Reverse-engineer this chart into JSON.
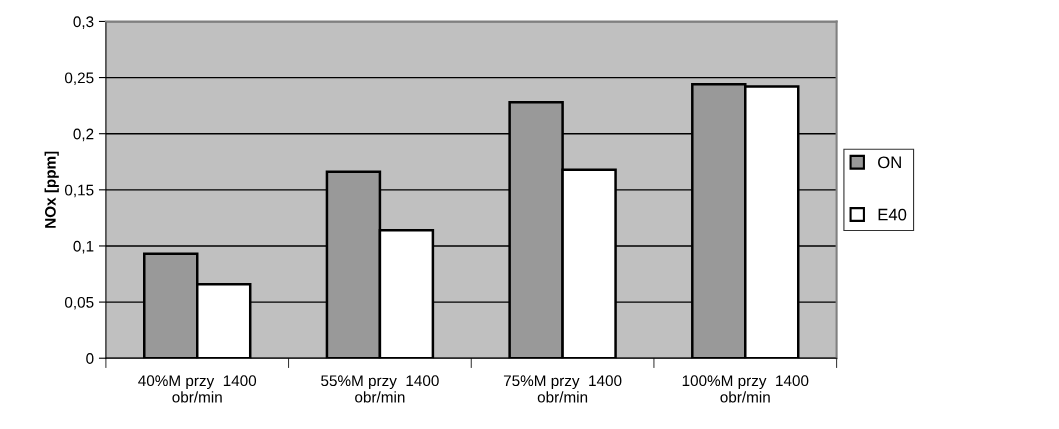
{
  "chart_data": {
    "type": "bar",
    "ylabel": "NOx [ppm]",
    "categories": [
      "40%M przy  1400\nobr/min",
      "55%M przy  1400\nobr/min",
      "75%M przy  1400\nobr/min",
      "100%M przy  1400\nobr/min"
    ],
    "series": [
      {
        "name": "ON",
        "color": "#999999",
        "values": [
          0.093,
          0.166,
          0.228,
          0.244
        ]
      },
      {
        "name": "E40",
        "color": "#ffffff",
        "values": [
          0.066,
          0.114,
          0.168,
          0.242
        ]
      }
    ],
    "ylim": [
      0,
      0.3
    ],
    "yticks": [
      {
        "value": 0,
        "label": "0"
      },
      {
        "value": 0.05,
        "label": "0,05"
      },
      {
        "value": 0.1,
        "label": "0,1"
      },
      {
        "value": 0.15,
        "label": "0,15"
      },
      {
        "value": 0.2,
        "label": "0,2"
      },
      {
        "value": 0.25,
        "label": "0,25"
      },
      {
        "value": 0.3,
        "label": "0,3"
      }
    ],
    "grid": "y",
    "legend": "right"
  }
}
